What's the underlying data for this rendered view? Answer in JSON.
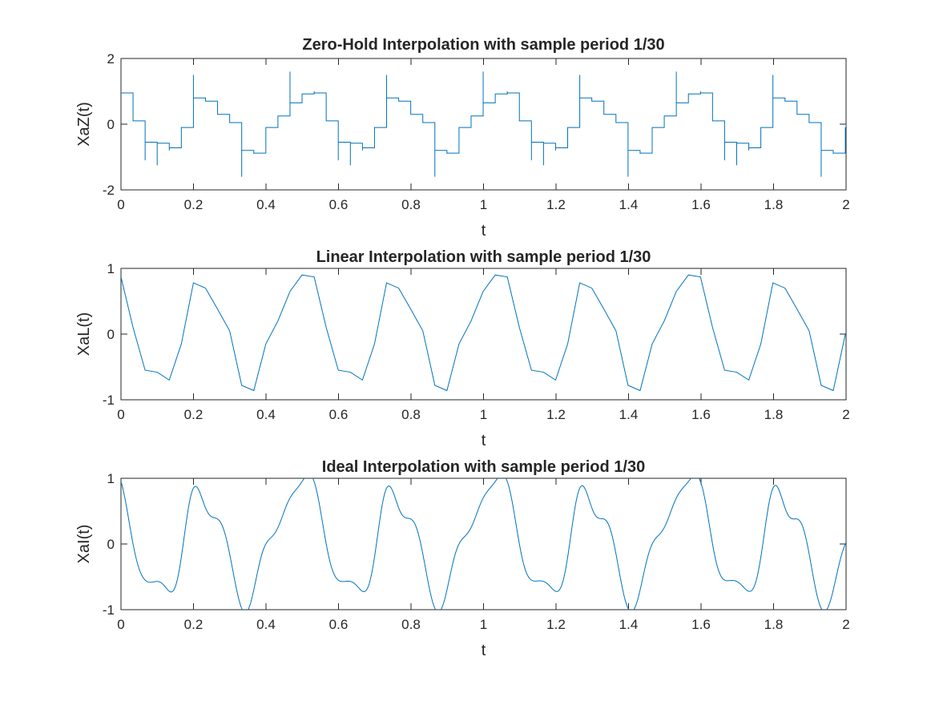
{
  "chart_data": [
    {
      "type": "line",
      "title": "Zero-Hold Interpolation with sample period 1/30",
      "xlabel": "t",
      "ylabel": "XaZ(t)",
      "xlim": [
        0,
        2
      ],
      "ylim": [
        -2,
        2
      ],
      "xticks": [
        "0",
        "0.2",
        "0.4",
        "0.6",
        "0.8",
        "1",
        "1.2",
        "1.4",
        "1.6",
        "1.8",
        "2"
      ],
      "yticks": [
        "-2",
        "0",
        "2"
      ],
      "grid": false,
      "interpolation": "zero-order hold",
      "series": [
        {
          "color": "#0072BD",
          "x": [
            0,
            0.0333,
            0.0667,
            0.1,
            0.1333,
            0.1667,
            0.2,
            0.2333,
            0.2667,
            0.3,
            0.3333,
            0.3667,
            0.4,
            0.4333,
            0.4667,
            0.5
          ],
          "y": [
            0.95,
            0.1,
            -0.55,
            -0.58,
            -0.72,
            -0.1,
            0.8,
            0.7,
            0.3,
            0.05,
            -0.8,
            -0.88,
            -0.1,
            0.25,
            0.65,
            0.92
          ],
          "spike_heights": [
            1.0,
            0.0,
            -1.1,
            -1.25,
            -0.8,
            0.0,
            1.5,
            0.0,
            0.0,
            0.0,
            -1.6,
            -0.9,
            0.0,
            0.0,
            1.6,
            0.0
          ]
        }
      ]
    },
    {
      "type": "line",
      "title": "Linear Interpolation with sample period 1/30",
      "xlabel": "t",
      "ylabel": "XaL(t)",
      "xlim": [
        0,
        2
      ],
      "ylim": [
        -1,
        1
      ],
      "xticks": [
        "0",
        "0.2",
        "0.4",
        "0.6",
        "0.8",
        "1",
        "1.2",
        "1.4",
        "1.6",
        "1.8",
        "2"
      ],
      "yticks": [
        "-1",
        "0",
        "1"
      ],
      "grid": false,
      "interpolation": "linear",
      "series": [
        {
          "color": "#0072BD",
          "x": [
            0,
            0.0333,
            0.0667,
            0.1,
            0.1333,
            0.1667,
            0.2,
            0.2333,
            0.2667,
            0.3,
            0.3333,
            0.3667,
            0.4,
            0.4333,
            0.4667,
            0.5
          ],
          "y": [
            0.87,
            0.1,
            -0.55,
            -0.58,
            -0.7,
            -0.15,
            0.78,
            0.7,
            0.38,
            0.05,
            -0.78,
            -0.86,
            -0.15,
            0.2,
            0.65,
            0.9
          ]
        }
      ]
    },
    {
      "type": "line",
      "title": "Ideal Interpolation with sample period 1/30",
      "xlabel": "t",
      "ylabel": "XaI(t)",
      "xlim": [
        0,
        2
      ],
      "ylim": [
        -1,
        1
      ],
      "xticks": [
        "0",
        "0.2",
        "0.4",
        "0.6",
        "0.8",
        "1",
        "1.2",
        "1.4",
        "1.6",
        "1.8",
        "2"
      ],
      "yticks": [
        "-1",
        "0",
        "1"
      ],
      "grid": false,
      "interpolation": "ideal (sinc)",
      "series": [
        {
          "color": "#0072BD",
          "x": [
            0,
            0.0333,
            0.0667,
            0.1,
            0.1333,
            0.1667,
            0.2,
            0.2333,
            0.2667,
            0.3,
            0.3333,
            0.3667,
            0.4,
            0.4333,
            0.4667,
            0.5
          ],
          "y": [
            0.95,
            0.0,
            -0.55,
            -0.57,
            -0.72,
            -0.2,
            0.85,
            0.55,
            0.38,
            -0.15,
            -0.98,
            -0.7,
            0.0,
            0.25,
            0.7,
            0.95
          ]
        }
      ]
    }
  ]
}
